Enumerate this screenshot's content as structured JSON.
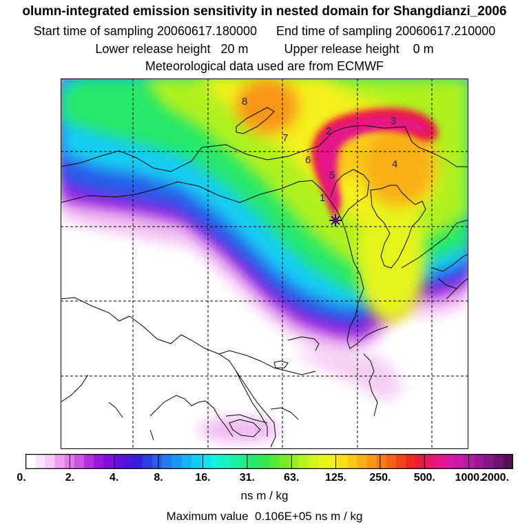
{
  "header": {
    "title": "olumn-integrated emission sensitivity in nested domain for Shangdianzi_2006",
    "start_label": "Start time of sampling",
    "start_value": "20060617.180000",
    "end_label": "End time of sampling",
    "end_value": "20060617.210000",
    "lower_label": "Lower release height",
    "lower_value": "20 m",
    "upper_label": "Upper release height",
    "upper_value": "0 m",
    "met_text": "Meteorological data used are from ECMWF"
  },
  "map": {
    "trajectory_labels": [
      "1",
      "2",
      "3",
      "4",
      "5",
      "6",
      "7",
      "8"
    ],
    "release_marker": "release-point-icon"
  },
  "legend": {
    "tick_labels": [
      "0.",
      "2.",
      "4.",
      "8.",
      "16.",
      "31.",
      "63.",
      "125.",
      "250.",
      "500.",
      "1000.",
      "2000."
    ],
    "unit": "ns m / kg",
    "max_label": "Maximum value",
    "max_value": "0.106E+05 ns m / kg",
    "colors": [
      "#ffffff",
      "#fbe3fb",
      "#f5c8f5",
      "#ee9cf0",
      "#e27ae8",
      "#cc55e2",
      "#b12fdd",
      "#9a18db",
      "#8010d8",
      "#6410d8",
      "#4a16db",
      "#3322dc",
      "#2a3ee3",
      "#2a5ce8",
      "#1f7cec",
      "#1a97f0",
      "#16b2f2",
      "#12ccf2",
      "#10e4ef",
      "#14f2de",
      "#18f2c2",
      "#1cf0a4",
      "#20ec88",
      "#28e86a",
      "#38e650",
      "#54e838",
      "#76ea2a",
      "#98ee22",
      "#b6f21e",
      "#d0f41c",
      "#e6f41a",
      "#f4f01a",
      "#f8e018",
      "#fac818",
      "#f8b016",
      "#f89616",
      "#f67c16",
      "#f46016",
      "#f24418",
      "#ee2a20",
      "#ec1a40",
      "#ea1666",
      "#e4168a",
      "#d818a0",
      "#c81aa6",
      "#b41ca2",
      "#9c1a98",
      "#821884",
      "#6a146c",
      "#561056"
    ]
  }
}
